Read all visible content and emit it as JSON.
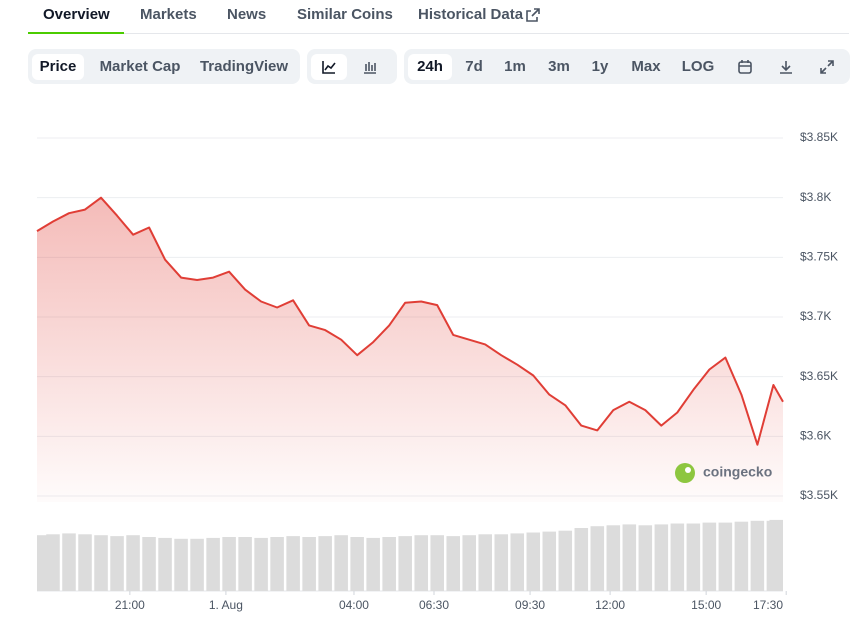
{
  "tabs": [
    "Overview",
    "Markets",
    "News",
    "Similar Coins",
    "Historical Data"
  ],
  "views": [
    "Price",
    "Market Cap",
    "TradingView"
  ],
  "ranges": [
    "24h",
    "7d",
    "1m",
    "3m",
    "1y",
    "Max",
    "LOG"
  ],
  "chart_data": {
    "type": "line",
    "watermark": "coingecko",
    "x": [
      18.1,
      18.6,
      19.1,
      19.6,
      20.1,
      20.6,
      21.1,
      21.6,
      22.1,
      22.6,
      23.1,
      23.6,
      24.1,
      24.6,
      25.1,
      25.6,
      26.1,
      26.6,
      27.1,
      27.6,
      28.1,
      28.6,
      29.1,
      29.6,
      30.1,
      30.6,
      31.1,
      31.6,
      32.1,
      32.6,
      33.1,
      33.6,
      34.1,
      34.6,
      35.1,
      35.6,
      36.1,
      36.6,
      37.1,
      37.6,
      38.1,
      38.6,
      39.1,
      39.6,
      40.1,
      40.6,
      41.1,
      41.4
    ],
    "series": [
      {
        "name": "Price",
        "color": "#e03e36",
        "values": [
          3772,
          3780,
          3787,
          3790,
          3800,
          3785,
          3769,
          3775,
          3748,
          3733,
          3731,
          3733,
          3738,
          3723,
          3713,
          3708,
          3714,
          3693,
          3689,
          3681,
          3668,
          3679,
          3693,
          3712,
          3713,
          3710,
          3685,
          3681,
          3677,
          3668,
          3660,
          3651,
          3635,
          3626,
          3609,
          3605,
          3622,
          3629,
          3622,
          3609,
          3620,
          3639,
          3656,
          3666,
          3635,
          3593,
          3643,
          3629
        ]
      },
      {
        "name": "Volume",
        "color": "#dcdcdc",
        "axis": "y2",
        "values": [
          62,
          63,
          64,
          63,
          62,
          61,
          62,
          60,
          59,
          58,
          58,
          59,
          60,
          60,
          59,
          60,
          61,
          60,
          61,
          62,
          60,
          59,
          60,
          61,
          62,
          62,
          61,
          62,
          63,
          63,
          64,
          65,
          66,
          67,
          70,
          72,
          73,
          74,
          73,
          74,
          75,
          75,
          76,
          76,
          77,
          78,
          78,
          79
        ]
      }
    ],
    "xlim": [
      18.1,
      41.4
    ],
    "xticks": [
      {
        "value": 21,
        "label": "21:00"
      },
      {
        "value": 24,
        "label": "1. Aug"
      },
      {
        "value": 28,
        "label": "04:00"
      },
      {
        "value": 30.5,
        "label": "06:30"
      },
      {
        "value": 33.5,
        "label": "09:30"
      },
      {
        "value": 36,
        "label": "12:00"
      },
      {
        "value": 39,
        "label": "15:00"
      },
      {
        "value": 41.5,
        "label": "17:30"
      }
    ],
    "ylim": [
      3550,
      3850
    ],
    "yticks": [
      {
        "value": 3550,
        "label": "$3.55K"
      },
      {
        "value": 3600,
        "label": "$3.6K"
      },
      {
        "value": 3650,
        "label": "$3.65K"
      },
      {
        "value": 3700,
        "label": "$3.7K"
      },
      {
        "value": 3750,
        "label": "$3.75K"
      },
      {
        "value": 3800,
        "label": "$3.8K"
      },
      {
        "value": 3850,
        "label": "$3.85K"
      }
    ],
    "y2lim": [
      0,
      100
    ],
    "grid": true
  }
}
